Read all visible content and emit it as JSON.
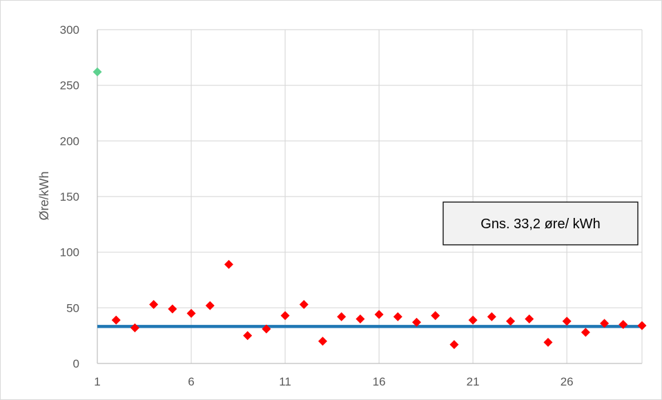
{
  "chart_data": {
    "type": "scatter",
    "title": "",
    "xlabel": "",
    "ylabel": "Øre/kWh",
    "xlim": [
      1,
      30
    ],
    "ylim": [
      0,
      300
    ],
    "x_ticks": [
      1,
      6,
      11,
      16,
      21,
      26
    ],
    "y_ticks": [
      0,
      50,
      100,
      150,
      200,
      250,
      300
    ],
    "grid": true,
    "average_line": {
      "value": 33.2,
      "color": "#1F77B4"
    },
    "annotation": {
      "text": "Gns. 33,2 øre/ kWh"
    },
    "series": [
      {
        "color": "#FF0000",
        "marker": "diamond",
        "points": [
          [
            2,
            39
          ],
          [
            3,
            32
          ],
          [
            4,
            53
          ],
          [
            5,
            49
          ],
          [
            6,
            45
          ],
          [
            7,
            52
          ],
          [
            8,
            89
          ],
          [
            9,
            25
          ],
          [
            10,
            31
          ],
          [
            11,
            43
          ],
          [
            12,
            53
          ],
          [
            13,
            20
          ],
          [
            14,
            42
          ],
          [
            15,
            40
          ],
          [
            16,
            44
          ],
          [
            17,
            42
          ],
          [
            18,
            37
          ],
          [
            19,
            43
          ],
          [
            20,
            17
          ],
          [
            21,
            39
          ],
          [
            22,
            42
          ],
          [
            23,
            38
          ],
          [
            24,
            40
          ],
          [
            25,
            19
          ],
          [
            26,
            38
          ],
          [
            27,
            28
          ],
          [
            28,
            36
          ],
          [
            29,
            35
          ],
          [
            30,
            34
          ]
        ]
      },
      {
        "color": "#5ED18F",
        "marker": "diamond",
        "points": [
          [
            1,
            262
          ]
        ]
      }
    ]
  }
}
